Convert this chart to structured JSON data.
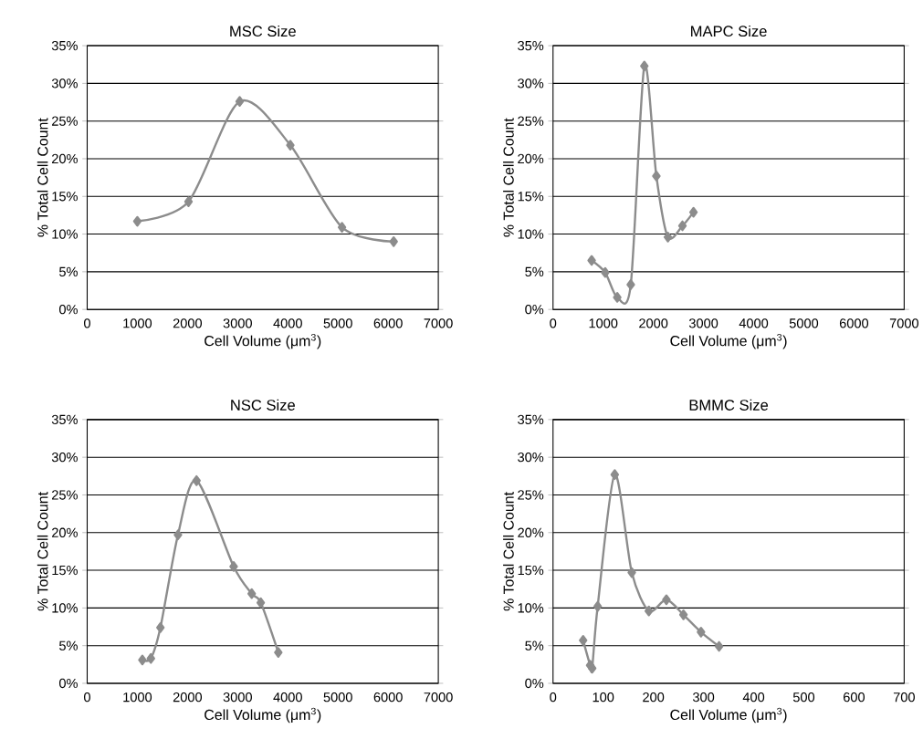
{
  "chart_data": [
    {
      "type": "line",
      "title": "MSC Size",
      "xlabel": "Cell Volume (μm$^{3}$)",
      "ylabel": "% Total Cell Count",
      "x": [
        1000,
        2020,
        3040,
        4050,
        5080,
        6110
      ],
      "values": [
        11.7,
        14.3,
        27.6,
        21.8,
        10.9,
        9.0
      ],
      "color": "#8c8c8c",
      "marker": "diamond",
      "line_style": "solid",
      "grid": "y",
      "xlim": [
        0,
        7000
      ],
      "ylim": [
        0,
        35
      ],
      "xticks": [
        0,
        1000,
        2000,
        3000,
        4000,
        5000,
        6000,
        7000
      ],
      "yticks": [
        {
          "value": 0,
          "label": "0%"
        },
        {
          "value": 5,
          "label": "5%"
        },
        {
          "value": 10,
          "label": "10%"
        },
        {
          "value": 15,
          "label": "15%"
        },
        {
          "value": 20,
          "label": "20%"
        },
        {
          "value": 25,
          "label": "25%"
        },
        {
          "value": 30,
          "label": "30%"
        },
        {
          "value": 35,
          "label": "35%"
        }
      ]
    },
    {
      "type": "line",
      "title": "MAPC Size",
      "xlabel": "Cell Volume (μm$^{3}$)",
      "ylabel": "% Total Cell Count",
      "x": [
        770,
        1040,
        1280,
        1550,
        1820,
        2060,
        2290,
        2580,
        2800
      ],
      "values": [
        6.5,
        4.9,
        1.6,
        3.3,
        32.3,
        17.7,
        9.6,
        11.1,
        12.9
      ],
      "color": "#8c8c8c",
      "marker": "diamond",
      "line_style": "solid",
      "grid": "y",
      "xlim": [
        0,
        7000
      ],
      "ylim": [
        0,
        35
      ],
      "xticks": [
        0,
        1000,
        2000,
        3000,
        4000,
        5000,
        6000,
        7000
      ],
      "yticks": [
        {
          "value": 0,
          "label": "0%"
        },
        {
          "value": 5,
          "label": "5%"
        },
        {
          "value": 10,
          "label": "10%"
        },
        {
          "value": 15,
          "label": "15%"
        },
        {
          "value": 20,
          "label": "20%"
        },
        {
          "value": 25,
          "label": "25%"
        },
        {
          "value": 30,
          "label": "30%"
        },
        {
          "value": 35,
          "label": "35%"
        }
      ]
    },
    {
      "type": "line",
      "title": "NSC Size",
      "xlabel": "Cell Volume (μm$^{3}$)",
      "ylabel": "% Total Cell Count",
      "x": [
        1100,
        1270,
        1460,
        1810,
        2180,
        2920,
        3280,
        3460,
        3810
      ],
      "values": [
        3.1,
        3.3,
        7.4,
        19.7,
        26.9,
        15.5,
        11.9,
        10.7,
        4.1
      ],
      "color": "#8c8c8c",
      "marker": "diamond",
      "line_style": "solid",
      "grid": "y",
      "xlim": [
        0,
        7000
      ],
      "ylim": [
        0,
        35
      ],
      "xticks": [
        0,
        1000,
        2000,
        3000,
        4000,
        5000,
        6000,
        7000
      ],
      "yticks": [
        {
          "value": 0,
          "label": "0%"
        },
        {
          "value": 5,
          "label": "5%"
        },
        {
          "value": 10,
          "label": "10%"
        },
        {
          "value": 15,
          "label": "15%"
        },
        {
          "value": 20,
          "label": "20%"
        },
        {
          "value": 25,
          "label": "25%"
        },
        {
          "value": 30,
          "label": "30%"
        },
        {
          "value": 35,
          "label": "35%"
        }
      ]
    },
    {
      "type": "line",
      "title": "BMMC Size",
      "xlabel": "Cell Volume (μm$^{3}$)",
      "ylabel": "% Total Cell Count",
      "x": [
        60,
        74,
        78,
        89,
        123,
        157,
        191,
        226,
        260,
        295,
        331
      ],
      "values": [
        5.7,
        2.4,
        2.0,
        10.2,
        27.7,
        14.7,
        9.6,
        11.1,
        9.1,
        6.8,
        4.9
      ],
      "color": "#8c8c8c",
      "marker": "diamond",
      "line_style": "solid",
      "grid": "y",
      "xlim": [
        0,
        700
      ],
      "ylim": [
        0,
        35
      ],
      "xticks": [
        0,
        100,
        200,
        300,
        400,
        500,
        600,
        700
      ],
      "yticks": [
        {
          "value": 0,
          "label": "0%"
        },
        {
          "value": 5,
          "label": "5%"
        },
        {
          "value": 10,
          "label": "10%"
        },
        {
          "value": 15,
          "label": "15%"
        },
        {
          "value": 20,
          "label": "20%"
        },
        {
          "value": 25,
          "label": "25%"
        },
        {
          "value": 30,
          "label": "30%"
        },
        {
          "value": 35,
          "label": "35%"
        }
      ]
    }
  ]
}
